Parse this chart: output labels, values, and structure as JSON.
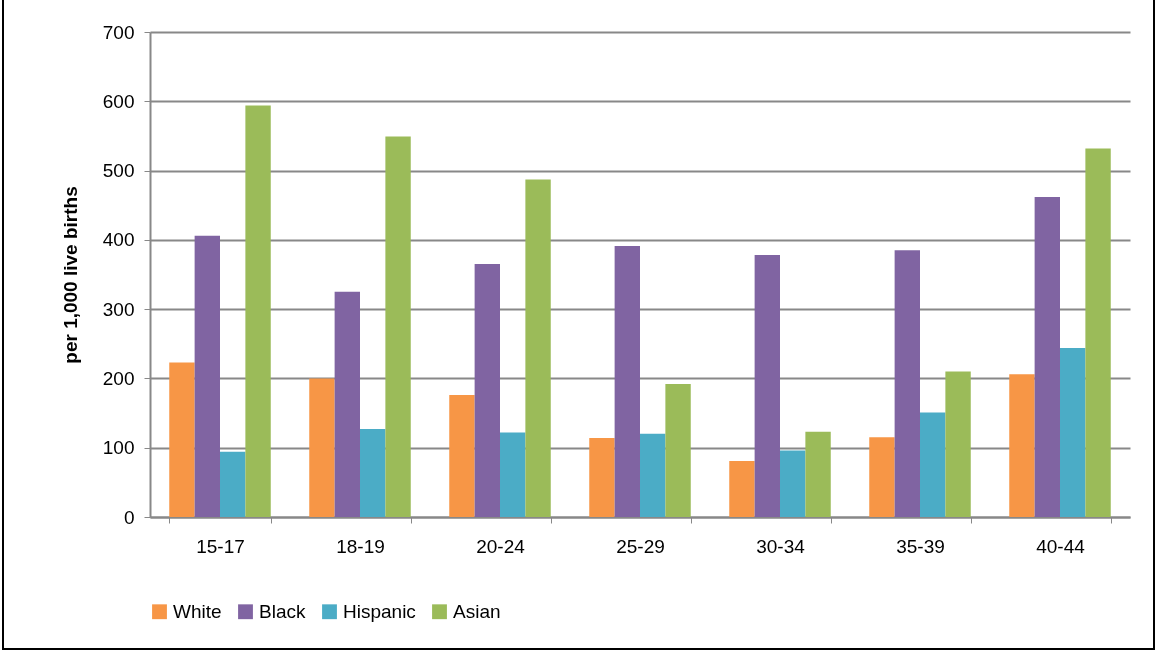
{
  "chart_data": {
    "type": "bar",
    "ylabel": "per 1,000 live births",
    "categories": [
      "15-17",
      "18-19",
      "20-24",
      "25-29",
      "30-34",
      "35-39",
      "40-44"
    ],
    "series": [
      {
        "name": "White",
        "color": "#f79646",
        "values": [
          223,
          200,
          176,
          114,
          81,
          115,
          206
        ]
      },
      {
        "name": "Black",
        "color": "#8064a2",
        "values": [
          406,
          325,
          365,
          391,
          378,
          385,
          462
        ]
      },
      {
        "name": "Hispanic",
        "color": "#4bacc6",
        "values": [
          94,
          127,
          122,
          120,
          96,
          151,
          244
        ]
      },
      {
        "name": "Asian",
        "color": "#9bbb59",
        "values": [
          594,
          549,
          487,
          192,
          123,
          210,
          532
        ]
      }
    ],
    "ylim": [
      0,
      700
    ],
    "yticks": [
      0,
      100,
      200,
      300,
      400,
      500,
      600,
      700
    ],
    "grid": "y",
    "legend": "bottom"
  }
}
